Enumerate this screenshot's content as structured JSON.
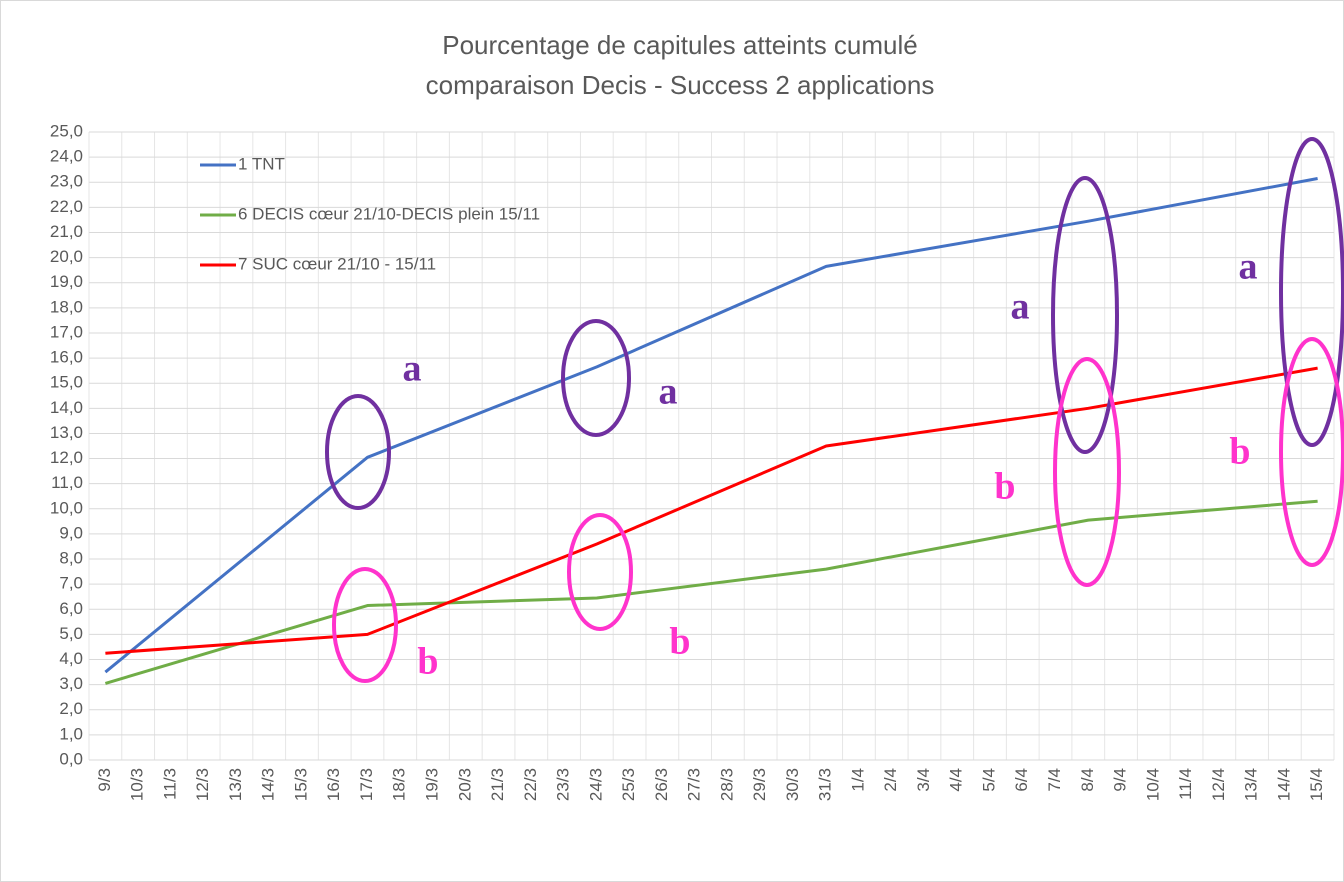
{
  "chart_data": {
    "type": "line",
    "title": [
      "Pourcentage de capitules atteints cumulé",
      "comparaison Decis - Success 2 applications"
    ],
    "categories": [
      "9/3",
      "10/3",
      "11/3",
      "12/3",
      "13/3",
      "14/3",
      "15/3",
      "16/3",
      "17/3",
      "18/3",
      "19/3",
      "20/3",
      "21/3",
      "22/3",
      "23/3",
      "24/3",
      "25/3",
      "26/3",
      "27/3",
      "28/3",
      "29/3",
      "30/3",
      "31/3",
      "1/4",
      "2/4",
      "3/4",
      "4/4",
      "5/4",
      "6/4",
      "7/4",
      "8/4",
      "9/4",
      "10/4",
      "11/4",
      "12/4",
      "13/4",
      "14/4",
      "15/4"
    ],
    "series": [
      {
        "name": "1 TNT",
        "color": "#4472c4",
        "x": [
          "9/3",
          "17/3",
          "24/3",
          "31/3",
          "8/4",
          "15/4"
        ],
        "values": [
          3.5,
          12.05,
          15.65,
          19.65,
          21.45,
          23.15
        ]
      },
      {
        "name": "6 DECIS cœur 21/10-DECIS plein 15/11",
        "color": "#70ad47",
        "x": [
          "9/3",
          "17/3",
          "24/3",
          "31/3",
          "8/4",
          "15/4"
        ],
        "values": [
          3.05,
          6.15,
          6.45,
          7.6,
          9.55,
          10.3
        ]
      },
      {
        "name": "7 SUC cœur 21/10 - 15/11",
        "color": "#ff0000",
        "x": [
          "9/3",
          "17/3",
          "24/3",
          "31/3",
          "8/4",
          "15/4"
        ],
        "values": [
          4.25,
          5.0,
          8.6,
          12.5,
          14.0,
          15.6
        ]
      }
    ],
    "ylim": [
      0,
      25
    ],
    "yticks": [
      {
        "value": 0,
        "label": "0,0"
      },
      {
        "value": 1,
        "label": "1,0"
      },
      {
        "value": 2,
        "label": "2,0"
      },
      {
        "value": 3,
        "label": "3,0"
      },
      {
        "value": 4,
        "label": "4,0"
      },
      {
        "value": 5,
        "label": "5,0"
      },
      {
        "value": 6,
        "label": "6,0"
      },
      {
        "value": 7,
        "label": "7,0"
      },
      {
        "value": 8,
        "label": "8,0"
      },
      {
        "value": 9,
        "label": "9,0"
      },
      {
        "value": 10,
        "label": "10,0"
      },
      {
        "value": 11,
        "label": "11,0"
      },
      {
        "value": 12,
        "label": "12,0"
      },
      {
        "value": 13,
        "label": "13,0"
      },
      {
        "value": 14,
        "label": "14,0"
      },
      {
        "value": 15,
        "label": "15,0"
      },
      {
        "value": 16,
        "label": "16,0"
      },
      {
        "value": 17,
        "label": "17,0"
      },
      {
        "value": 18,
        "label": "18,0"
      },
      {
        "value": 19,
        "label": "19,0"
      },
      {
        "value": 20,
        "label": "20,0"
      },
      {
        "value": 21,
        "label": "21,0"
      },
      {
        "value": 22,
        "label": "22,0"
      },
      {
        "value": 23,
        "label": "23,0"
      },
      {
        "value": 24,
        "label": "24,0"
      },
      {
        "value": 25,
        "label": "25,0"
      }
    ],
    "grid": true,
    "legend": "upper left",
    "annotations": [
      {
        "text": "a",
        "color": "#7030a0"
      },
      {
        "text": "a",
        "color": "#7030a0"
      },
      {
        "text": "a",
        "color": "#7030a0"
      },
      {
        "text": "a",
        "color": "#7030a0"
      },
      {
        "text": "b",
        "color": "#ff33cc"
      },
      {
        "text": "b",
        "color": "#ff33cc"
      },
      {
        "text": "b",
        "color": "#ff33cc"
      },
      {
        "text": "b",
        "color": "#ff33cc"
      }
    ]
  }
}
